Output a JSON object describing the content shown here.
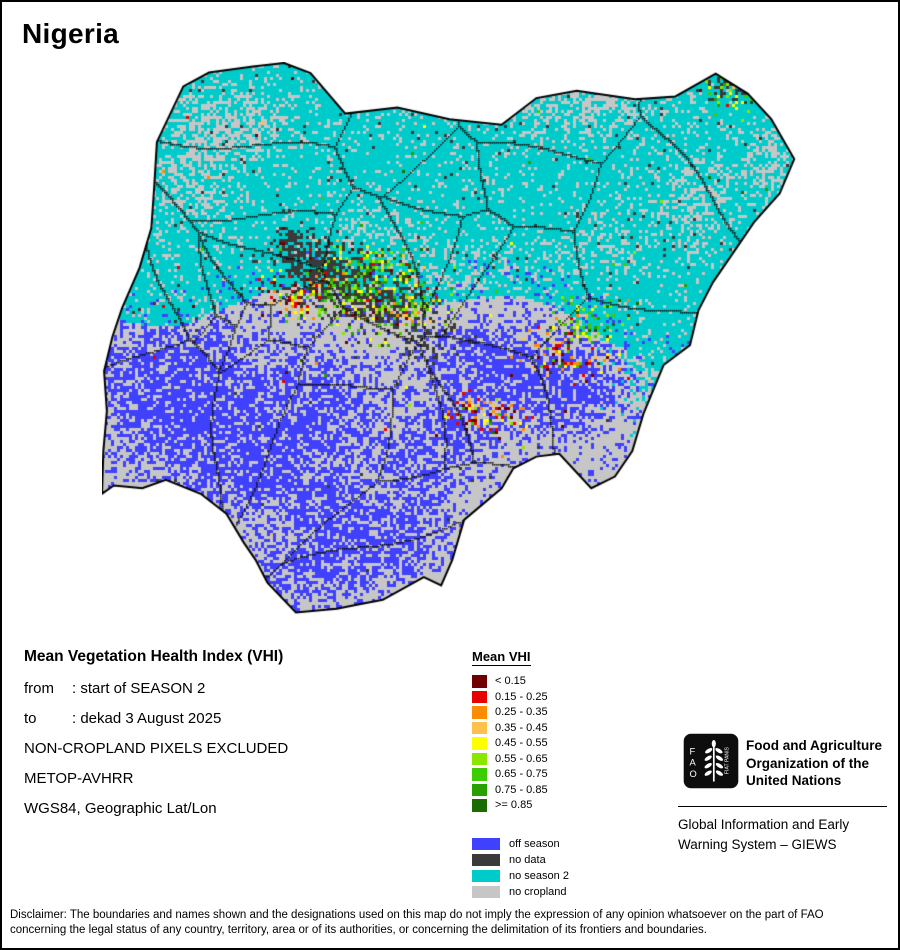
{
  "title": "Nigeria",
  "info": {
    "heading": "Mean Vegetation Health Index (VHI)",
    "from_label": "from",
    "from_value": ": start of SEASON 2",
    "to_label": "to",
    "to_value": ": dekad 3 August 2025",
    "extra": [
      "NON-CROPLAND PIXELS EXCLUDED",
      "METOP-AVHRR",
      "WGS84, Geographic Lat/Lon"
    ]
  },
  "legend": {
    "title": "Mean VHI",
    "vhi_classes": [
      {
        "label": "< 0.15",
        "color": "#700000"
      },
      {
        "label": "0.15 - 0.25",
        "color": "#e60000"
      },
      {
        "label": "0.25 - 0.35",
        "color": "#ff8c00"
      },
      {
        "label": "0.35 - 0.45",
        "color": "#ffc04d"
      },
      {
        "label": "0.45 - 0.55",
        "color": "#ffff00"
      },
      {
        "label": "0.55 - 0.65",
        "color": "#8ce600"
      },
      {
        "label": "0.65 - 0.75",
        "color": "#3dcc00"
      },
      {
        "label": "0.75 - 0.85",
        "color": "#28a000"
      },
      {
        "label": ">= 0.85",
        "color": "#1a6b00"
      }
    ],
    "season_classes": [
      {
        "label": "off season",
        "color": "#4040ff"
      },
      {
        "label": "no data",
        "color": "#3a3a3a"
      },
      {
        "label": "no season 2",
        "color": "#00cbcb"
      },
      {
        "label": "no cropland",
        "color": "#c6c6c6"
      }
    ]
  },
  "footer": {
    "fao_name": "Food and Agriculture\nOrganization of the\nUnited Nations",
    "giews_name": "Global Information and Early\nWarning System – GIEWS"
  },
  "icons": {
    "fao_logo": "fao-wheat-emblem"
  },
  "disclaimer": "Disclaimer: The boundaries and names shown and the designations used on this map do not imply the expression of any opinion whatsoever on the part of FAO\nconcerning the legal status of any country, territory, area or of its authorities, or concerning the delimitation of its frontiers and boundaries."
}
